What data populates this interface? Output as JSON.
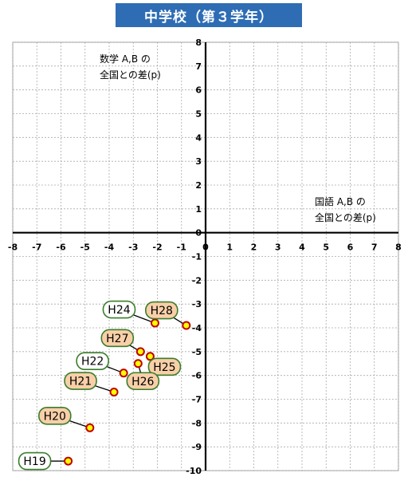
{
  "title": "中学校（第３学年）",
  "colors": {
    "title_bg": "#2e6db4",
    "white_label_border": "#3a7d2a",
    "orange_label_fill": "#f8cfa8",
    "point_fill": "#ffff00",
    "point_stroke": "#c00000"
  },
  "chart_data": {
    "type": "scatter",
    "xlabel_lines": [
      "国語 A,B の",
      "全国との差(p)"
    ],
    "ylabel_lines": [
      "数学 A,B の",
      "全国との差(p)"
    ],
    "xlim": [
      -8,
      8
    ],
    "ylim": [
      -10,
      8
    ],
    "xticks": [
      "-8",
      "-7",
      "-6",
      "-5",
      "-4",
      "-3",
      "-2",
      "-1",
      "0",
      "1",
      "2",
      "3",
      "4",
      "5",
      "6",
      "7",
      "8"
    ],
    "yticks": [
      "8",
      "7",
      "6",
      "5",
      "4",
      "3",
      "2",
      "1",
      "0",
      "-1",
      "-2",
      "-3",
      "-4",
      "-5",
      "-6",
      "-7",
      "-8",
      "-9",
      "-10"
    ],
    "grid": true,
    "points": [
      {
        "label": "H19",
        "x": -5.7,
        "y": -9.6,
        "style": "white"
      },
      {
        "label": "H20",
        "x": -4.8,
        "y": -8.2,
        "style": "orange"
      },
      {
        "label": "H21",
        "x": -3.8,
        "y": -6.7,
        "style": "orange"
      },
      {
        "label": "H22",
        "x": -3.4,
        "y": -5.9,
        "style": "white"
      },
      {
        "label": "H24",
        "x": -2.1,
        "y": -3.8,
        "style": "white"
      },
      {
        "label": "H25",
        "x": -2.3,
        "y": -5.2,
        "style": "orange"
      },
      {
        "label": "H26",
        "x": -2.8,
        "y": -5.5,
        "style": "orange"
      },
      {
        "label": "H27",
        "x": -2.7,
        "y": -5.0,
        "style": "orange"
      },
      {
        "label": "H28",
        "x": -0.8,
        "y": -3.9,
        "style": "orange"
      }
    ]
  }
}
